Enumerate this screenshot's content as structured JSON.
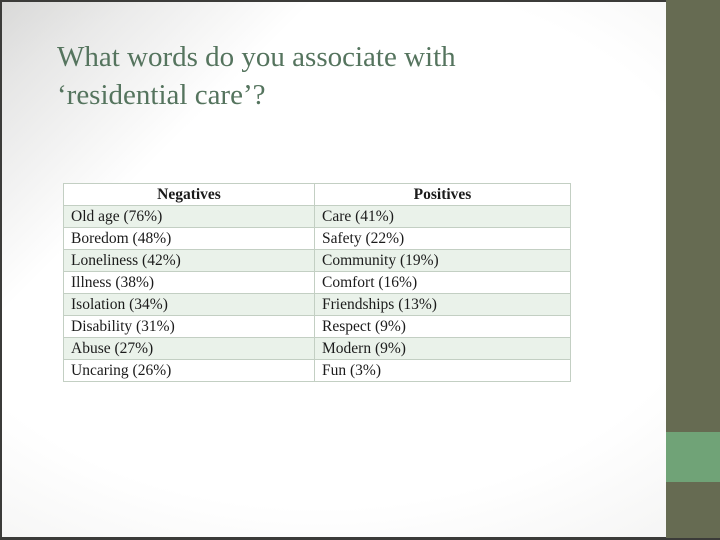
{
  "title": {
    "line1": "What words do you associate with",
    "line2": "‘residential care’?"
  },
  "table": {
    "headers": [
      "Negatives",
      "Positives"
    ],
    "rows": [
      {
        "neg": "Old age (76%)",
        "pos": "Care (41%)"
      },
      {
        "neg": "Boredom (48%)",
        "pos": "Safety (22%)"
      },
      {
        "neg": "Loneliness (42%)",
        "pos": "Community (19%)"
      },
      {
        "neg": "Illness (38%)",
        "pos": "Comfort (16%)"
      },
      {
        "neg": "Isolation (34%)",
        "pos": "Friendships (13%)"
      },
      {
        "neg": "Disability (31%)",
        "pos": "Respect (9%)"
      },
      {
        "neg": "Abuse (27%)",
        "pos": "Modern (9%)"
      },
      {
        "neg": "Uncaring (26%)",
        "pos": "Fun (3%)"
      }
    ]
  },
  "colors": {
    "frame_dark": "#3b3b39",
    "sidebar_olive": "#666b52",
    "accent_green": "#70a377",
    "title_green": "#55745e",
    "row_tint": "#eaf2ea",
    "table_border": "#c3cfc3"
  }
}
